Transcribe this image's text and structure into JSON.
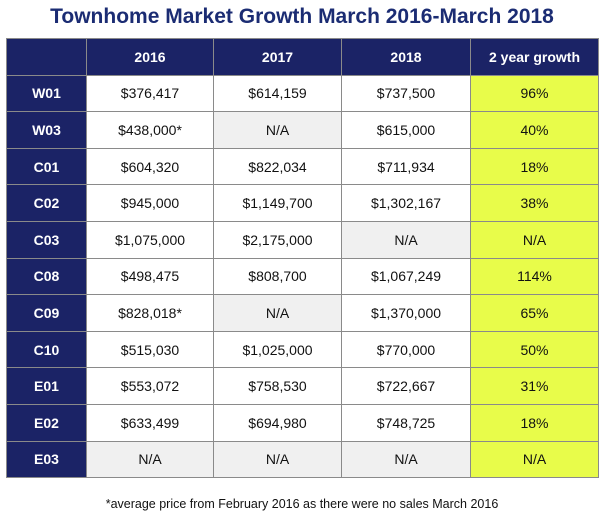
{
  "title": "Townhome Market Growth March 2016-March 2018",
  "colors": {
    "header_bg": "#1b2366",
    "title_color": "#1b2c73",
    "growth_bg": "#e8fc4a",
    "na_bg": "#f0f0f0"
  },
  "table": {
    "headers": [
      "",
      "2016",
      "2017",
      "2018",
      "2 year growth"
    ],
    "rows": [
      {
        "code": "W01",
        "y2016": "$376,417",
        "y2017": "$614,159",
        "y2018": "$737,500",
        "growth": "96%"
      },
      {
        "code": "W03",
        "y2016": "$438,000*",
        "y2017": "N/A",
        "y2018": "$615,000",
        "growth": "40%"
      },
      {
        "code": "C01",
        "y2016": "$604,320",
        "y2017": "$822,034",
        "y2018": "$711,934",
        "growth": "18%"
      },
      {
        "code": "C02",
        "y2016": "$945,000",
        "y2017": "$1,149,700",
        "y2018": "$1,302,167",
        "growth": "38%"
      },
      {
        "code": "C03",
        "y2016": "$1,075,000",
        "y2017": "$2,175,000",
        "y2018": "N/A",
        "growth": "N/A"
      },
      {
        "code": "C08",
        "y2016": "$498,475",
        "y2017": "$808,700",
        "y2018": "$1,067,249",
        "growth": "114%"
      },
      {
        "code": "C09",
        "y2016": "$828,018*",
        "y2017": "N/A",
        "y2018": "$1,370,000",
        "growth": "65%"
      },
      {
        "code": "C10",
        "y2016": "$515,030",
        "y2017": "$1,025,000",
        "y2018": "$770,000",
        "growth": "50%"
      },
      {
        "code": "E01",
        "y2016": "$553,072",
        "y2017": "$758,530",
        "y2018": "$722,667",
        "growth": "31%"
      },
      {
        "code": "E02",
        "y2016": "$633,499",
        "y2017": "$694,980",
        "y2018": "$748,725",
        "growth": "18%"
      },
      {
        "code": "E03",
        "y2016": "N/A",
        "y2017": "N/A",
        "y2018": "N/A",
        "growth": "N/A"
      }
    ]
  },
  "footnote": "*average price from February 2016 as there were no sales March 2016"
}
